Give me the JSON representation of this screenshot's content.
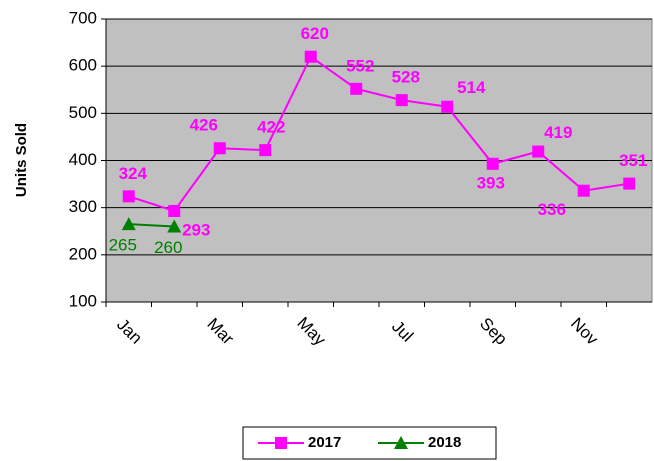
{
  "chart_data": {
    "type": "line",
    "y_label": "Units Sold",
    "categories": [
      "Jan",
      null,
      "Mar",
      null,
      "May",
      null,
      "Jul",
      null,
      "Sep",
      null,
      "Nov",
      null
    ],
    "series": [
      {
        "name": "2017",
        "color": "#ff00ff",
        "marker": "square",
        "values": [
          324,
          293,
          426,
          422,
          620,
          552,
          528,
          514,
          393,
          419,
          336,
          351
        ]
      },
      {
        "name": "2018",
        "color": "#008000",
        "marker": "triangle",
        "values": [
          265,
          260,
          null,
          null,
          null,
          null,
          null,
          null,
          null,
          null,
          null,
          null
        ]
      }
    ],
    "ylim": [
      100,
      700
    ],
    "yticks": [
      100,
      200,
      300,
      400,
      500,
      600,
      700
    ],
    "grid": true,
    "legend": "bottom"
  }
}
